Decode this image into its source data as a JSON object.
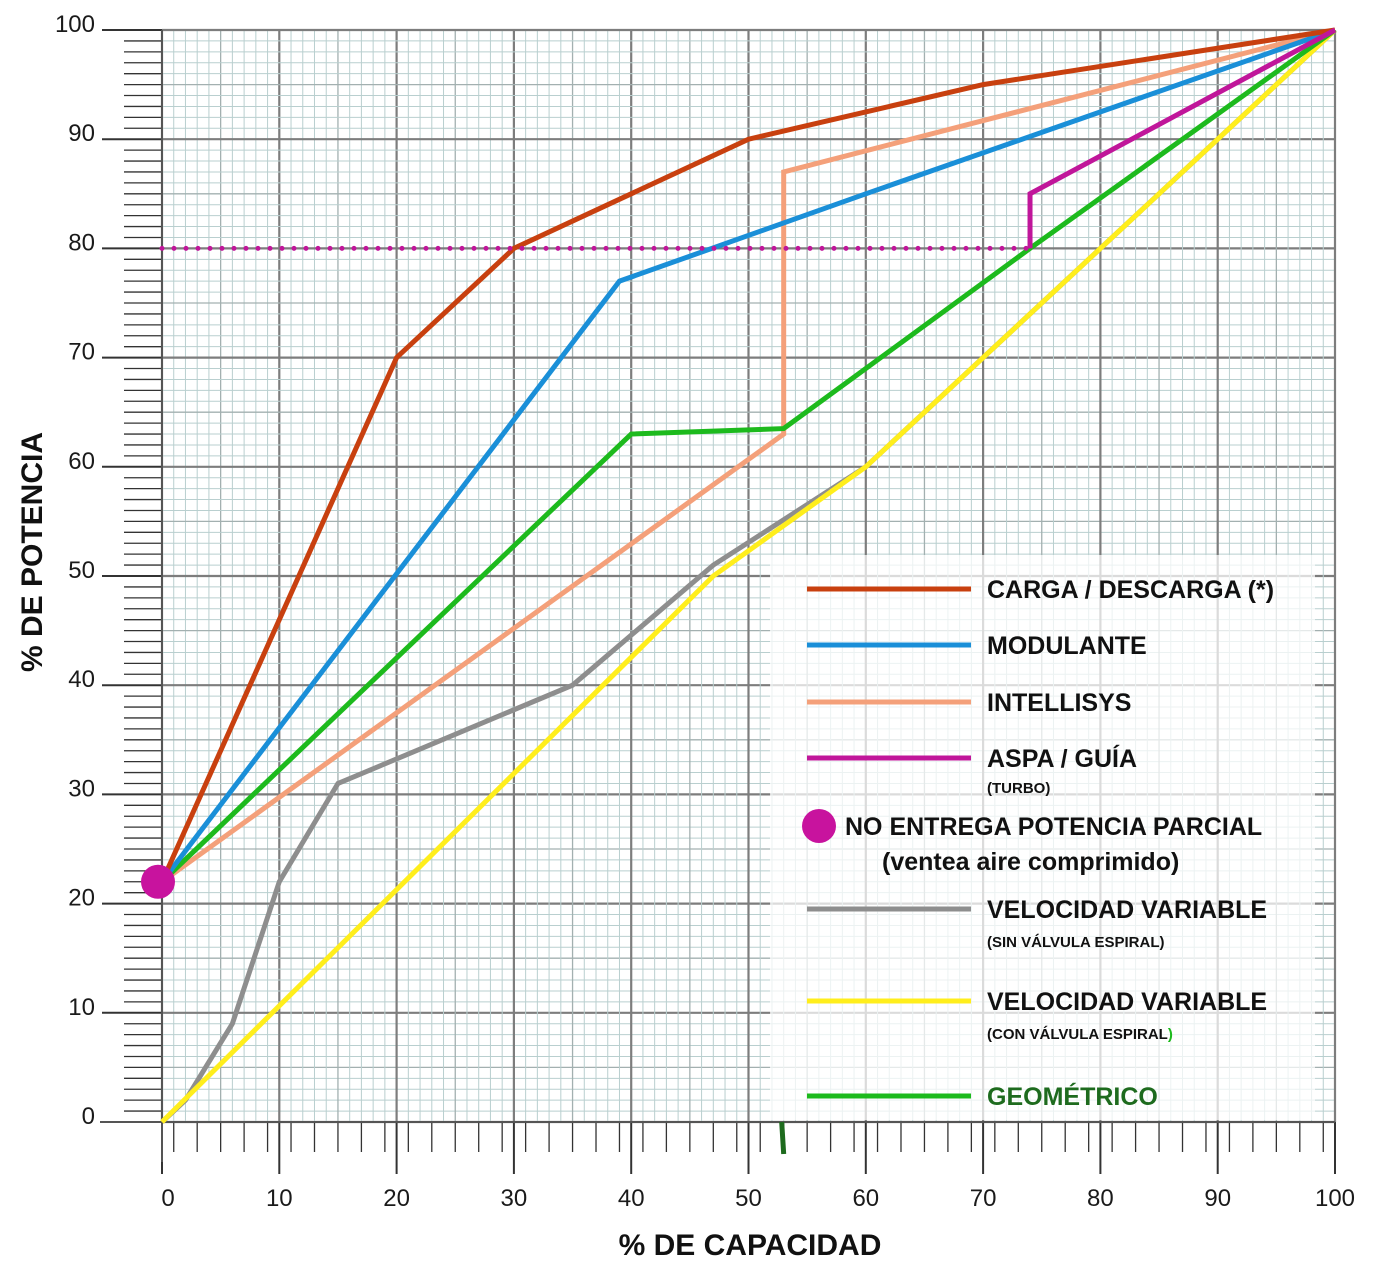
{
  "chart_data": {
    "type": "line",
    "xlabel": "% DE CAPACIDAD",
    "ylabel": "% DE POTENCIA",
    "xlim": [
      0,
      100
    ],
    "ylim": [
      0,
      100
    ],
    "x_ticks": [
      "0",
      "10",
      "20",
      "30",
      "40",
      "50",
      "60",
      "70",
      "80",
      "90",
      "100"
    ],
    "y_ticks": [
      "0",
      "10",
      "20",
      "30",
      "40",
      "50",
      "60",
      "70",
      "80",
      "90",
      "100"
    ],
    "grid": true,
    "legend_position": "bottom-right",
    "series": [
      {
        "name": "CARGA / DESCARGA  (*)",
        "color": "#c8400f",
        "points": [
          [
            0,
            22
          ],
          [
            20,
            70
          ],
          [
            30,
            80
          ],
          [
            50,
            90
          ],
          [
            70,
            95
          ],
          [
            100,
            100
          ]
        ]
      },
      {
        "name": "MODULANTE",
        "color": "#1a8fd8",
        "points": [
          [
            0,
            22
          ],
          [
            39,
            77
          ],
          [
            60,
            85
          ],
          [
            100,
            100
          ]
        ]
      },
      {
        "name": "INTELLISYS",
        "color": "#f4a07a",
        "points": [
          [
            0,
            22
          ],
          [
            53,
            63
          ],
          [
            53,
            87
          ],
          [
            100,
            100
          ]
        ]
      },
      {
        "name": "ASPA / GUÍA",
        "subtitle": "(TURBO)",
        "color": "#c0169a",
        "points": [
          [
            0,
            80
          ],
          [
            74,
            80
          ],
          [
            74,
            85
          ],
          [
            100,
            100
          ]
        ],
        "dotted_to": 74
      },
      {
        "name": "VELOCIDAD VARIABLE",
        "subtitle": "(SIN VÁLVULA ESPIRAL)",
        "color": "#8e8e8e",
        "points": [
          [
            0,
            0
          ],
          [
            2,
            2
          ],
          [
            6,
            9
          ],
          [
            10,
            22
          ],
          [
            15,
            31
          ],
          [
            35,
            40
          ],
          [
            47,
            51
          ],
          [
            60,
            60
          ],
          [
            100,
            100
          ]
        ]
      },
      {
        "name": "VELOCIDAD  VARIABLE",
        "subtitle": "(CON VÁLVULA ESPIRAL",
        "subtitle_end": ")",
        "color": "#ffee1c",
        "points": [
          [
            0,
            0
          ],
          [
            47,
            50
          ],
          [
            60,
            60
          ],
          [
            100,
            100
          ]
        ]
      },
      {
        "name": "GEOMÉTRICO",
        "color": "#1dba1d",
        "label_color": "#1e6b1e",
        "points": [
          [
            0,
            22
          ],
          [
            40,
            63
          ],
          [
            53,
            63.5
          ],
          [
            74,
            80
          ],
          [
            100,
            100
          ]
        ]
      }
    ],
    "marker": {
      "label": "NO ENTREGA  POTENCIA PARCIAL",
      "sublabel": "(ventea  aire comprimido)",
      "color": "#c8139e",
      "x": 0,
      "y": 22
    }
  }
}
